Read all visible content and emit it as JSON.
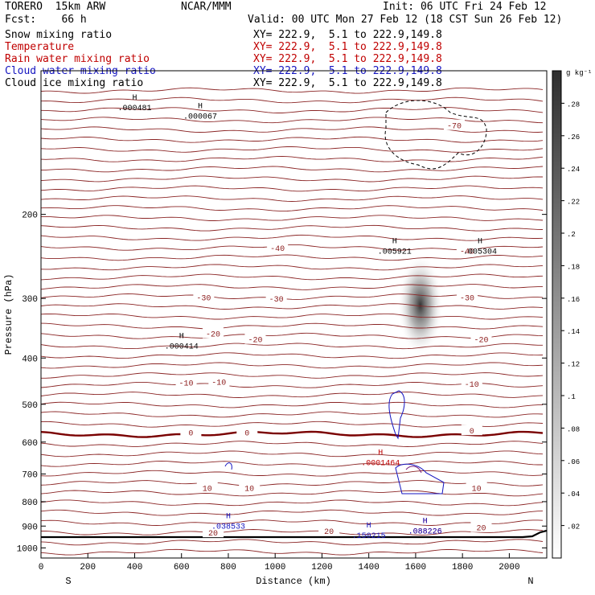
{
  "header": {
    "model": "TORERO  15km ARW",
    "fcst": "Fcst:    66 h",
    "center": "NCAR/MMM",
    "init": "Init: 06 UTC Fri 24 Feb 12",
    "valid": "Valid: 00 UTC Mon 27 Feb 12 (18 CST Sun 26 Feb 12)"
  },
  "legend": [
    {
      "label": "Snow mixing ratio",
      "xy": "XY= 222.9,  5.1 to 222.9,149.8",
      "color": "#000000"
    },
    {
      "label": "Temperature",
      "xy": "XY= 222.9,  5.1 to 222.9,149.8",
      "color": "#c00000"
    },
    {
      "label": "Rain water mixing ratio",
      "xy": "XY= 222.9,  5.1 to 222.9,149.8",
      "color": "#c00000"
    },
    {
      "label": "Cloud water mixing ratio",
      "xy": "XY= 222.9,  5.1 to 222.9,149.8",
      "color": "#1515c0"
    },
    {
      "label": "Cloud ice mixing ratio",
      "xy": "XY= 222.9,  5.1 to 222.9,149.8",
      "color": "#000000"
    }
  ],
  "chart_data": {
    "type": "cross-section",
    "xlabel": "Distance (km)",
    "ylabel": "Pressure (hPa)",
    "x_ticks": [
      "0",
      "200",
      "400",
      "600",
      "800",
      "1000",
      "1200",
      "1400",
      "1600",
      "1800",
      "2000"
    ],
    "y_ticks": [
      "200",
      "300",
      "400",
      "500",
      "600",
      "700",
      "800",
      "900",
      "1000"
    ],
    "xlim": [
      0,
      2160
    ],
    "ylim": [
      100,
      1050
    ],
    "y_log": true,
    "side_labels": {
      "left": "S",
      "right": "N"
    },
    "colorbar": {
      "unit": "g kg⁻¹",
      "ticks": [
        ".02",
        ".04",
        ".06",
        ".08",
        ".1",
        ".12",
        ".14",
        ".16",
        ".18",
        ".2",
        ".22",
        ".24",
        ".26",
        ".28"
      ],
      "range": [
        0,
        0.3
      ],
      "colors": {
        "top": "#2e2e2e",
        "bottom": "#ffffff"
      }
    },
    "temperature_labels": [
      {
        "text": "-70",
        "x": 1765,
        "p": 130
      },
      {
        "text": "-40",
        "x": 1010,
        "p": 235
      },
      {
        "text": "-40",
        "x": 1820,
        "p": 238
      },
      {
        "text": "-30",
        "x": 695,
        "p": 298
      },
      {
        "text": "-30",
        "x": 1005,
        "p": 300
      },
      {
        "text": "-30",
        "x": 1820,
        "p": 298
      },
      {
        "text": "-20",
        "x": 735,
        "p": 355
      },
      {
        "text": "-20",
        "x": 915,
        "p": 365
      },
      {
        "text": "-20",
        "x": 1880,
        "p": 365
      },
      {
        "text": "-10",
        "x": 620,
        "p": 450
      },
      {
        "text": "-10",
        "x": 760,
        "p": 448
      },
      {
        "text": "-10",
        "x": 1840,
        "p": 452
      },
      {
        "text": "0",
        "x": 640,
        "p": 572
      },
      {
        "text": "0",
        "x": 880,
        "p": 572
      },
      {
        "text": "0",
        "x": 1840,
        "p": 567
      },
      {
        "text": "10",
        "x": 710,
        "p": 747
      },
      {
        "text": "10",
        "x": 890,
        "p": 747
      },
      {
        "text": "10",
        "x": 1860,
        "p": 747
      },
      {
        "text": "20",
        "x": 735,
        "p": 928
      },
      {
        "text": "20",
        "x": 1230,
        "p": 920
      },
      {
        "text": "20",
        "x": 1880,
        "p": 905
      }
    ],
    "maxima": [
      {
        "text": ".000481",
        "x": 400,
        "p": 120,
        "color": "#000000"
      },
      {
        "text": ".000067",
        "x": 680,
        "p": 125,
        "color": "#000000"
      },
      {
        "text": ".005921",
        "x": 1510,
        "p": 240,
        "color": "#000000"
      },
      {
        "text": ".005304",
        "x": 1875,
        "p": 240,
        "color": "#000000"
      },
      {
        "text": ".000414",
        "x": 600,
        "p": 379,
        "color": "#000000"
      },
      {
        "text": ".0001464",
        "x": 1450,
        "p": 665,
        "color": "#c00000"
      },
      {
        "text": ".038533",
        "x": 800,
        "p": 905,
        "color": "#1515c0"
      },
      {
        "text": ".150215",
        "x": 1400,
        "p": 945,
        "color": "#1515c0"
      },
      {
        "text": ".088226",
        "x": 1640,
        "p": 925,
        "color": "#c00000"
      },
      {
        "text": ".088226",
        "x": 1640,
        "p": 925,
        "color": "#1515c0"
      }
    ],
    "ice_max_value": 0.28,
    "ice_center": {
      "x": 1620,
      "p": 310
    }
  }
}
